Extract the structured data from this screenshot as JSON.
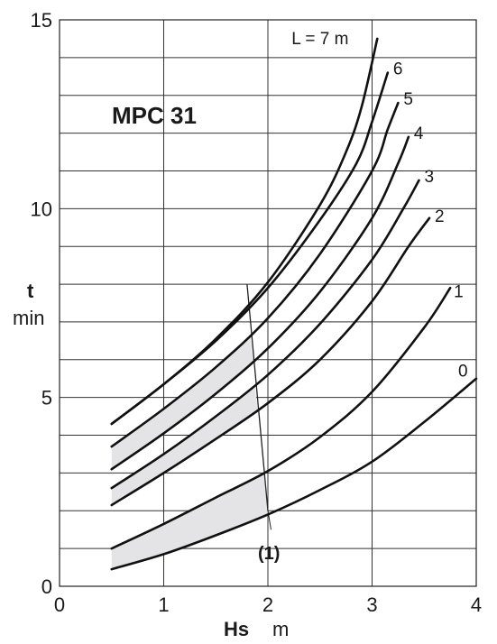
{
  "chart_data": {
    "type": "line",
    "title": "MPC 31",
    "xlabel": "Hs",
    "xunit": "m",
    "ylabel": "t",
    "yunit": "min",
    "xlim": [
      0,
      4
    ],
    "ylim": [
      0,
      15
    ],
    "x_ticks": [
      "0",
      "1",
      "2",
      "3",
      "4"
    ],
    "y_ticks": [
      "0",
      "5",
      "10",
      "15"
    ],
    "grid": true,
    "series": [
      {
        "name": "0",
        "label": "0",
        "x": [
          0.5,
          1.0,
          1.5,
          2.0,
          2.5,
          3.0,
          3.5,
          4.0
        ],
        "y": [
          0.45,
          0.85,
          1.35,
          1.9,
          2.55,
          3.3,
          4.35,
          5.5
        ]
      },
      {
        "name": "1",
        "label": "1",
        "x": [
          0.5,
          1.0,
          1.5,
          2.0,
          2.5,
          3.0,
          3.5,
          3.75
        ],
        "y": [
          1.0,
          1.65,
          2.35,
          3.05,
          3.95,
          5.15,
          6.85,
          7.9
        ]
      },
      {
        "name": "2",
        "label": "2",
        "x": [
          0.5,
          1.0,
          1.5,
          2.0,
          2.5,
          3.0,
          3.35,
          3.55
        ],
        "y": [
          2.15,
          3.0,
          3.9,
          4.85,
          6.0,
          7.55,
          9.0,
          9.75
        ]
      },
      {
        "name": "3",
        "label": "3",
        "x": [
          0.5,
          1.0,
          1.5,
          2.0,
          2.5,
          3.0,
          3.3,
          3.45
        ],
        "y": [
          2.6,
          3.5,
          4.5,
          5.6,
          6.95,
          8.65,
          10.0,
          10.75
        ]
      },
      {
        "name": "4",
        "label": "4",
        "x": [
          0.5,
          1.0,
          1.5,
          2.0,
          2.5,
          3.0,
          3.25,
          3.35
        ],
        "y": [
          3.1,
          4.05,
          5.1,
          6.3,
          7.8,
          9.75,
          11.2,
          11.9
        ]
      },
      {
        "name": "5",
        "label": "5",
        "x": [
          0.5,
          1.0,
          1.5,
          2.0,
          2.5,
          3.0,
          3.15,
          3.25
        ],
        "y": [
          3.7,
          4.7,
          5.8,
          7.1,
          8.8,
          11.0,
          12.1,
          12.8
        ]
      },
      {
        "name": "6",
        "label": "6",
        "x": [
          0.5,
          1.0,
          1.5,
          2.0,
          2.5,
          2.85,
          3.0,
          3.15
        ],
        "y": [
          4.3,
          5.35,
          6.5,
          7.9,
          9.7,
          11.2,
          12.3,
          13.6
        ]
      },
      {
        "name": "7",
        "label": "L = 7 m",
        "x": [
          0.5,
          1.0,
          1.5,
          2.0,
          2.5,
          2.75,
          2.9,
          3.05
        ],
        "y": [
          4.3,
          5.35,
          6.55,
          8.05,
          10.1,
          11.5,
          12.7,
          14.5
        ]
      }
    ],
    "shaded_region": {
      "boundary_line": {
        "x": [
          1.8,
          2.0
        ],
        "y": [
          8.0,
          2.0
        ]
      },
      "description_label": "(1)",
      "label_position_data": {
        "x": 2.05,
        "y": 0.9
      }
    }
  }
}
